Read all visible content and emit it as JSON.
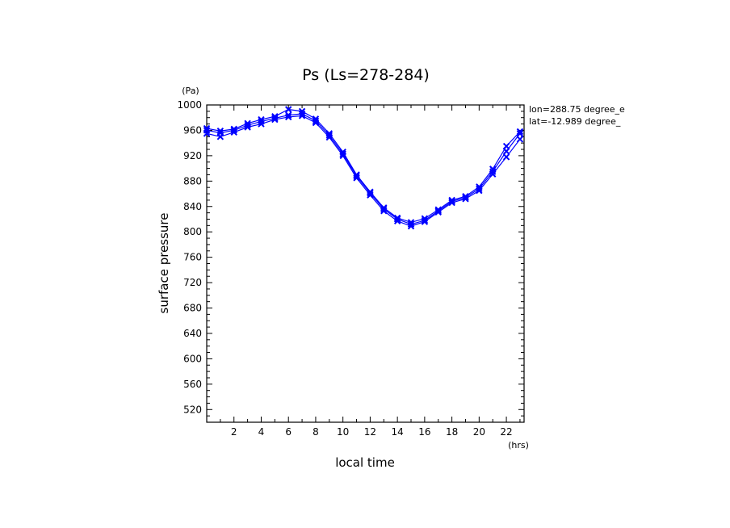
{
  "chart_data": {
    "type": "line",
    "title": "Ps (Ls=278-284)",
    "xlabel": "local time",
    "ylabel": "surface pressure",
    "x_unit": "(hrs)",
    "y_unit": "(Pa)",
    "xlim": [
      0,
      23.3
    ],
    "ylim": [
      500,
      1000
    ],
    "x_ticks": [
      2,
      4,
      6,
      8,
      10,
      12,
      14,
      16,
      18,
      20,
      22
    ],
    "y_ticks": [
      520,
      560,
      600,
      640,
      680,
      720,
      760,
      800,
      840,
      880,
      920,
      960,
      1000
    ],
    "grid": false,
    "annotations": [
      "lon=288.75 degree_e",
      "lat=-12.989 degree_"
    ],
    "color": "#0000ff",
    "x": [
      0,
      1,
      2,
      3,
      4,
      5,
      6,
      7,
      8,
      9,
      10,
      11,
      12,
      13,
      14,
      15,
      16,
      17,
      18,
      19,
      20,
      21,
      22,
      23
    ],
    "series": [
      {
        "values": [
          960,
          956,
          960,
          968,
          974,
          979,
          984,
          986,
          975,
          952,
          923,
          888,
          861,
          836,
          820,
          812,
          818,
          833,
          848,
          854,
          868,
          895,
          927,
          955
        ]
      },
      {
        "values": [
          955,
          950,
          957,
          965,
          970,
          977,
          981,
          983,
          972,
          949,
          920,
          885,
          858,
          833,
          817,
          809,
          816,
          831,
          846,
          852,
          865,
          891,
          918,
          946
        ]
      },
      {
        "values": [
          963,
          959,
          962,
          971,
          977,
          982,
          993,
          990,
          978,
          955,
          926,
          890,
          863,
          838,
          822,
          815,
          821,
          835,
          850,
          856,
          871,
          899,
          935,
          958
        ]
      }
    ]
  }
}
